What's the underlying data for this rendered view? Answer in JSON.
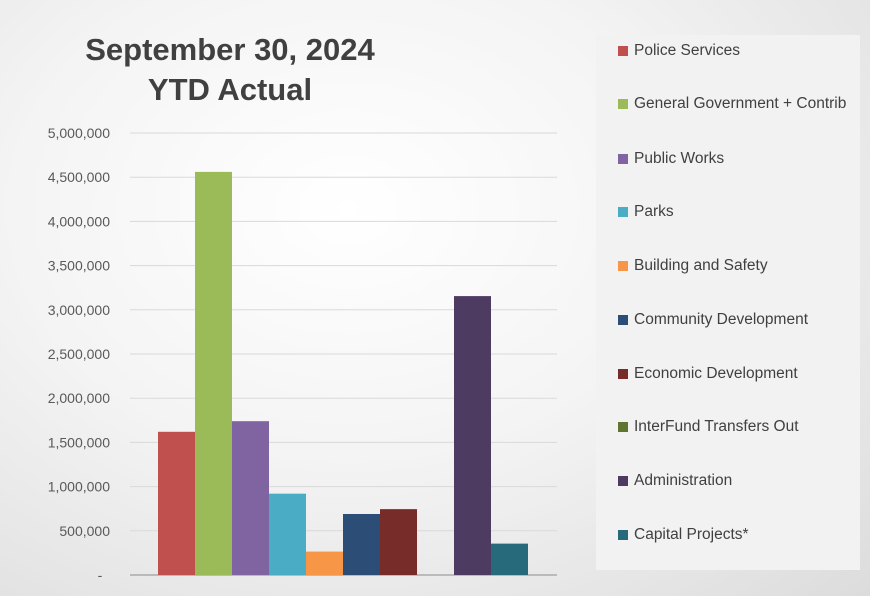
{
  "chart_data": {
    "type": "bar",
    "title": "September 30, 2024",
    "subtitle": "YTD Actual",
    "xlabel": "",
    "ylabel": "",
    "ylim": [
      0,
      5000000
    ],
    "y_ticks": [
      "-",
      "500,000",
      "1,000,000",
      "1,500,000",
      "2,000,000",
      "2,500,000",
      "3,000,000",
      "3,500,000",
      "4,000,000",
      "4,500,000",
      "5,000,000"
    ],
    "grid": true,
    "legend_position": "right",
    "series": [
      {
        "name": "Police Services",
        "value": 1620000,
        "color": "#c0504d"
      },
      {
        "name": "General Government + Contrib",
        "value": 4560000,
        "color": "#9bbb59"
      },
      {
        "name": "Public Works",
        "value": 1740000,
        "color": "#8064a2"
      },
      {
        "name": "Parks",
        "value": 920000,
        "color": "#4bacc6"
      },
      {
        "name": "Building and Safety",
        "value": 265000,
        "color": "#f79646"
      },
      {
        "name": "Community Development",
        "value": 690000,
        "color": "#2c4d75"
      },
      {
        "name": "Economic Development",
        "value": 745000,
        "color": "#772c2a"
      },
      {
        "name": "InterFund Transfers Out",
        "value": 0,
        "color": "#5f7530"
      },
      {
        "name": "Administration",
        "value": 3155000,
        "color": "#4d3b62"
      },
      {
        "name": "Capital Projects*",
        "value": 355000,
        "color": "#276a7c"
      }
    ]
  }
}
